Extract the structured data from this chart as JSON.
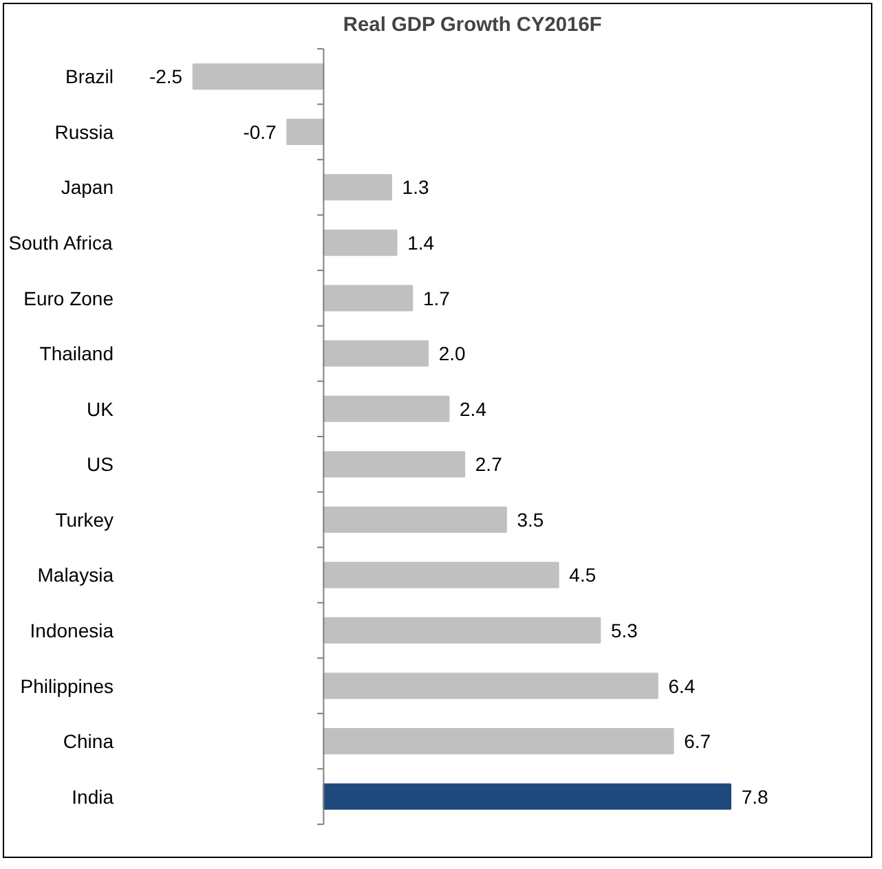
{
  "chart_data": {
    "type": "bar",
    "orientation": "horizontal",
    "title": "Real GDP Growth CY2016F",
    "categories": [
      "Brazil",
      "Russia",
      "Japan",
      "South Africa",
      "Euro Zone",
      "Thailand",
      "UK",
      "US",
      "Turkey",
      "Malaysia",
      "Indonesia",
      "Philippines",
      "China",
      "India"
    ],
    "values": [
      -2.5,
      -0.7,
      1.3,
      1.4,
      1.7,
      2.0,
      2.4,
      2.7,
      3.5,
      4.5,
      5.3,
      6.4,
      6.7,
      7.8
    ],
    "value_labels": [
      "-2.5",
      "-0.7",
      "1.3",
      "1.4",
      "1.7",
      "2.0",
      "2.4",
      "2.7",
      "3.5",
      "4.5",
      "5.3",
      "6.4",
      "6.7",
      "7.8"
    ],
    "colors": [
      "#c0c0c0",
      "#c0c0c0",
      "#c0c0c0",
      "#c0c0c0",
      "#c0c0c0",
      "#c0c0c0",
      "#c0c0c0",
      "#c0c0c0",
      "#c0c0c0",
      "#c0c0c0",
      "#c0c0c0",
      "#c0c0c0",
      "#c0c0c0",
      "#1f497d"
    ],
    "grid": false
  }
}
